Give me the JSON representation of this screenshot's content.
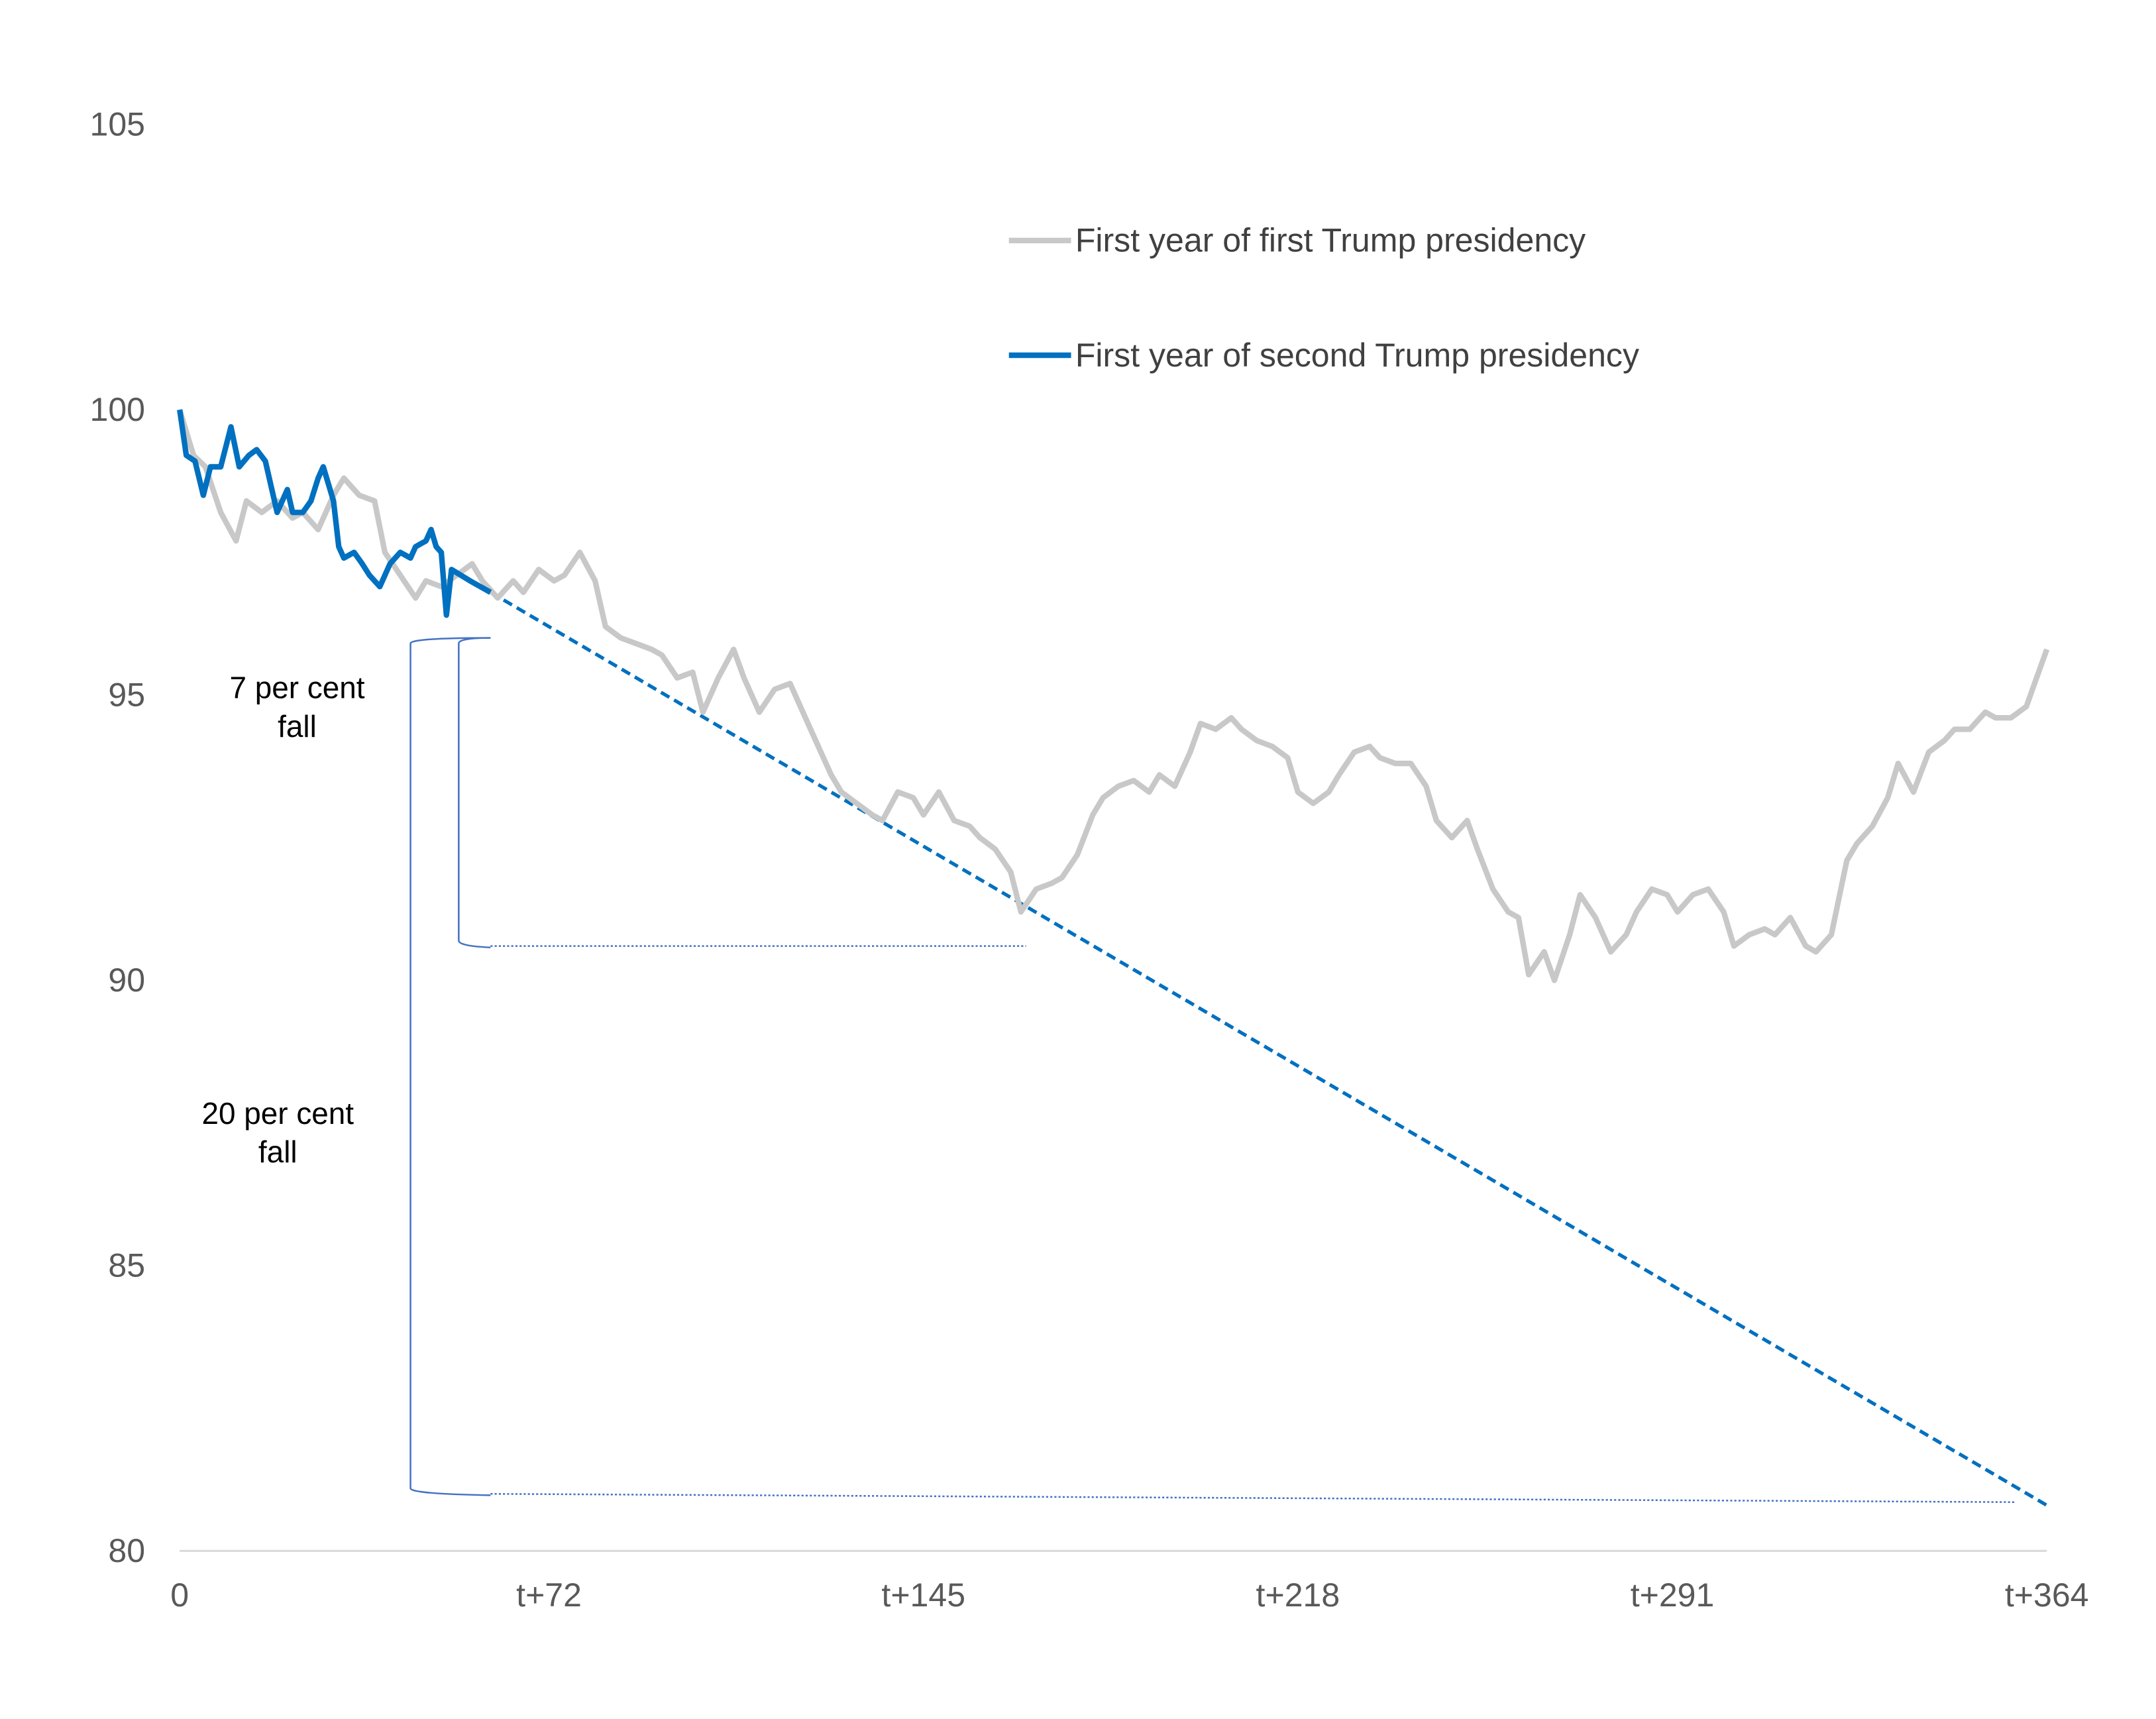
{
  "chart_data": {
    "type": "line",
    "title": "",
    "xlabel": "",
    "ylabel": "",
    "xlim": [
      0,
      364
    ],
    "ylim": [
      80,
      105
    ],
    "y_ticks": [
      80,
      85,
      90,
      95,
      100,
      105
    ],
    "x_ticks": [
      {
        "value": 0,
        "label": "0"
      },
      {
        "value": 72,
        "label": "t+72"
      },
      {
        "value": 145,
        "label": "t+145"
      },
      {
        "value": 218,
        "label": "t+218"
      },
      {
        "value": 291,
        "label": "t+291"
      },
      {
        "value": 364,
        "label": "t+364"
      }
    ],
    "grid": false,
    "legend_position": "top-right",
    "colors": {
      "first": "#c8c8c8",
      "second": "#0070c0",
      "bracket": "#4472c4",
      "axis": "#d9d9d9"
    },
    "series": [
      {
        "name": "First year of first Trump presidency",
        "color": "#c8c8c8",
        "x": [
          0,
          2.7,
          5,
          8,
          11,
          13,
          16,
          19,
          22,
          24,
          27,
          30,
          32,
          35,
          38,
          40,
          43,
          46,
          48,
          51,
          54,
          57,
          59,
          62,
          65,
          67,
          70,
          73,
          75,
          78,
          81,
          83,
          86,
          89,
          92,
          94,
          97,
          100,
          102,
          105,
          108,
          110,
          113,
          116,
          119,
          121,
          124,
          127,
          129,
          132,
          135,
          137,
          140,
          143,
          145,
          148,
          151,
          154,
          156,
          159,
          162,
          164,
          167,
          170,
          172,
          175,
          178,
          180,
          183,
          186,
          189,
          191,
          194,
          197,
          199,
          202,
          205,
          207,
          210,
          213,
          216,
          218,
          221,
          224,
          226,
          229,
          232,
          234,
          237,
          240,
          243,
          245,
          248,
          251,
          253,
          256,
          259,
          261,
          263,
          266,
          268,
          271,
          273,
          276,
          279,
          282,
          284,
          287,
          290,
          292,
          295,
          298,
          301,
          303,
          306,
          309,
          311,
          314,
          317,
          319,
          322,
          325,
          327,
          330,
          333,
          335,
          338,
          341,
          344,
          346,
          349,
          352,
          354,
          357,
          360,
          362,
          364
        ],
        "y": [
          100,
          99.2,
          99.0,
          98.2,
          97.7,
          98.4,
          98.2,
          98.4,
          98.1,
          98.2,
          97.9,
          98.5,
          98.8,
          98.5,
          98.4,
          97.5,
          97.1,
          96.7,
          97.0,
          96.9,
          97.1,
          97.3,
          97.0,
          96.7,
          97.0,
          96.8,
          97.2,
          97.0,
          97.1,
          97.5,
          97.0,
          96.2,
          96.0,
          95.9,
          95.8,
          95.7,
          95.3,
          95.4,
          94.7,
          95.3,
          95.8,
          95.3,
          94.7,
          95.1,
          95.2,
          94.8,
          94.2,
          93.6,
          93.3,
          93.1,
          92.9,
          92.8,
          93.3,
          93.2,
          92.9,
          93.3,
          92.8,
          92.7,
          92.5,
          92.3,
          91.9,
          91.2,
          91.6,
          91.7,
          91.8,
          92.2,
          92.9,
          93.2,
          93.4,
          93.5,
          93.3,
          93.6,
          93.4,
          94.0,
          94.5,
          94.4,
          94.6,
          94.4,
          94.2,
          94.1,
          93.9,
          93.3,
          93.1,
          93.3,
          93.6,
          94.0,
          94.1,
          93.9,
          93.8,
          93.8,
          93.4,
          92.8,
          92.5,
          92.8,
          92.3,
          91.6,
          91.2,
          91.1,
          90.1,
          90.5,
          90.0,
          90.8,
          91.5,
          91.1,
          90.5,
          90.8,
          91.2,
          91.6,
          91.5,
          91.2,
          91.5,
          91.6,
          91.2,
          90.6,
          90.8,
          90.9,
          90.8,
          91.1,
          90.6,
          90.5,
          90.8,
          92.1,
          92.4,
          92.7,
          93.2,
          93.8,
          93.3,
          94.0,
          94.2,
          94.4,
          94.4,
          94.7,
          94.6,
          94.6,
          94.8,
          95.3,
          95.8
        ]
      },
      {
        "name": "First year of second Trump presidency",
        "color": "#0070c0",
        "x": [
          0,
          1.3,
          3,
          4.6,
          6,
          8,
          10,
          11.6,
          13.5,
          15,
          16.7,
          19,
          21,
          22,
          24,
          25.6,
          27,
          28,
          30,
          31,
          32,
          34,
          35.6,
          37,
          39,
          41,
          43,
          45,
          46,
          48,
          49,
          50,
          51,
          52,
          53,
          56.6,
          60.6
        ],
        "y": [
          100,
          99.2,
          99.1,
          98.5,
          99.0,
          99.0,
          99.7,
          99.0,
          99.2,
          99.3,
          99.1,
          98.2,
          98.6,
          98.2,
          98.2,
          98.4,
          98.8,
          99.0,
          98.4,
          97.6,
          97.4,
          97.5,
          97.3,
          97.1,
          96.9,
          97.3,
          97.5,
          97.4,
          97.6,
          97.7,
          97.9,
          97.6,
          97.5,
          96.4,
          97.2,
          97.0,
          96.8
        ]
      }
    ],
    "trend": {
      "color": "#0070c0",
      "style": "dashed",
      "x": [
        60.6,
        364
      ],
      "y": [
        96.8,
        80.8
      ]
    },
    "annotations": [
      {
        "label_line1": "7 per cent",
        "label_line2": "fall",
        "from": 96.0,
        "to": 90.6,
        "bracket_day": 54.4,
        "line_to_day": 165
      },
      {
        "label_line1": "20 per cent",
        "label_line2": "fall",
        "from": 96.0,
        "to": 81.0,
        "bracket_day": 45,
        "line_to_day": 358
      }
    ]
  }
}
